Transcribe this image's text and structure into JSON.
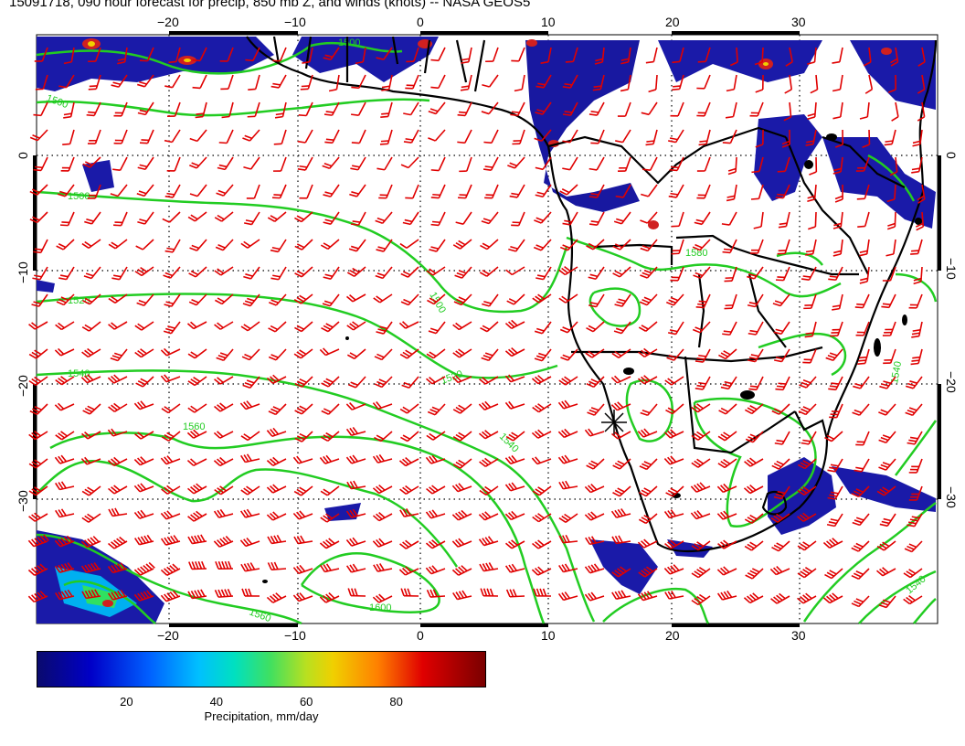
{
  "title": "15091718, 090 hour forecast for precip, 850 mb Z, and winds (knots) -- NASA GEOS5",
  "axes": {
    "lon_ticks_top": [
      "−20",
      "−10",
      "0",
      "10",
      "20",
      "30"
    ],
    "lon_ticks_bottom": [
      "−20",
      "−10",
      "0",
      "10",
      "20",
      "30"
    ],
    "lat_ticks_left": [
      "0",
      "−10",
      "−20",
      "−30"
    ],
    "lat_ticks_right": [
      "0",
      "−10",
      "−20",
      "−30"
    ]
  },
  "contour_labels": [
    "1500",
    "1500",
    "1500",
    "1500",
    "1520",
    "1520",
    "1540",
    "1540",
    "1560",
    "1560",
    "1580",
    "1600",
    "1540",
    "1540"
  ],
  "colorbar": {
    "ticks": [
      "20",
      "40",
      "60",
      "80"
    ],
    "tick_values": [
      20,
      40,
      60,
      80
    ],
    "range": [
      0,
      100
    ],
    "label": "Precipitation, mm/day"
  },
  "colors": {
    "contour": "#22cc22",
    "wind_barb": "#e00000",
    "coast": "#000000",
    "precip_low": "#0a0a8c",
    "precip_high": "#8b0000"
  }
}
